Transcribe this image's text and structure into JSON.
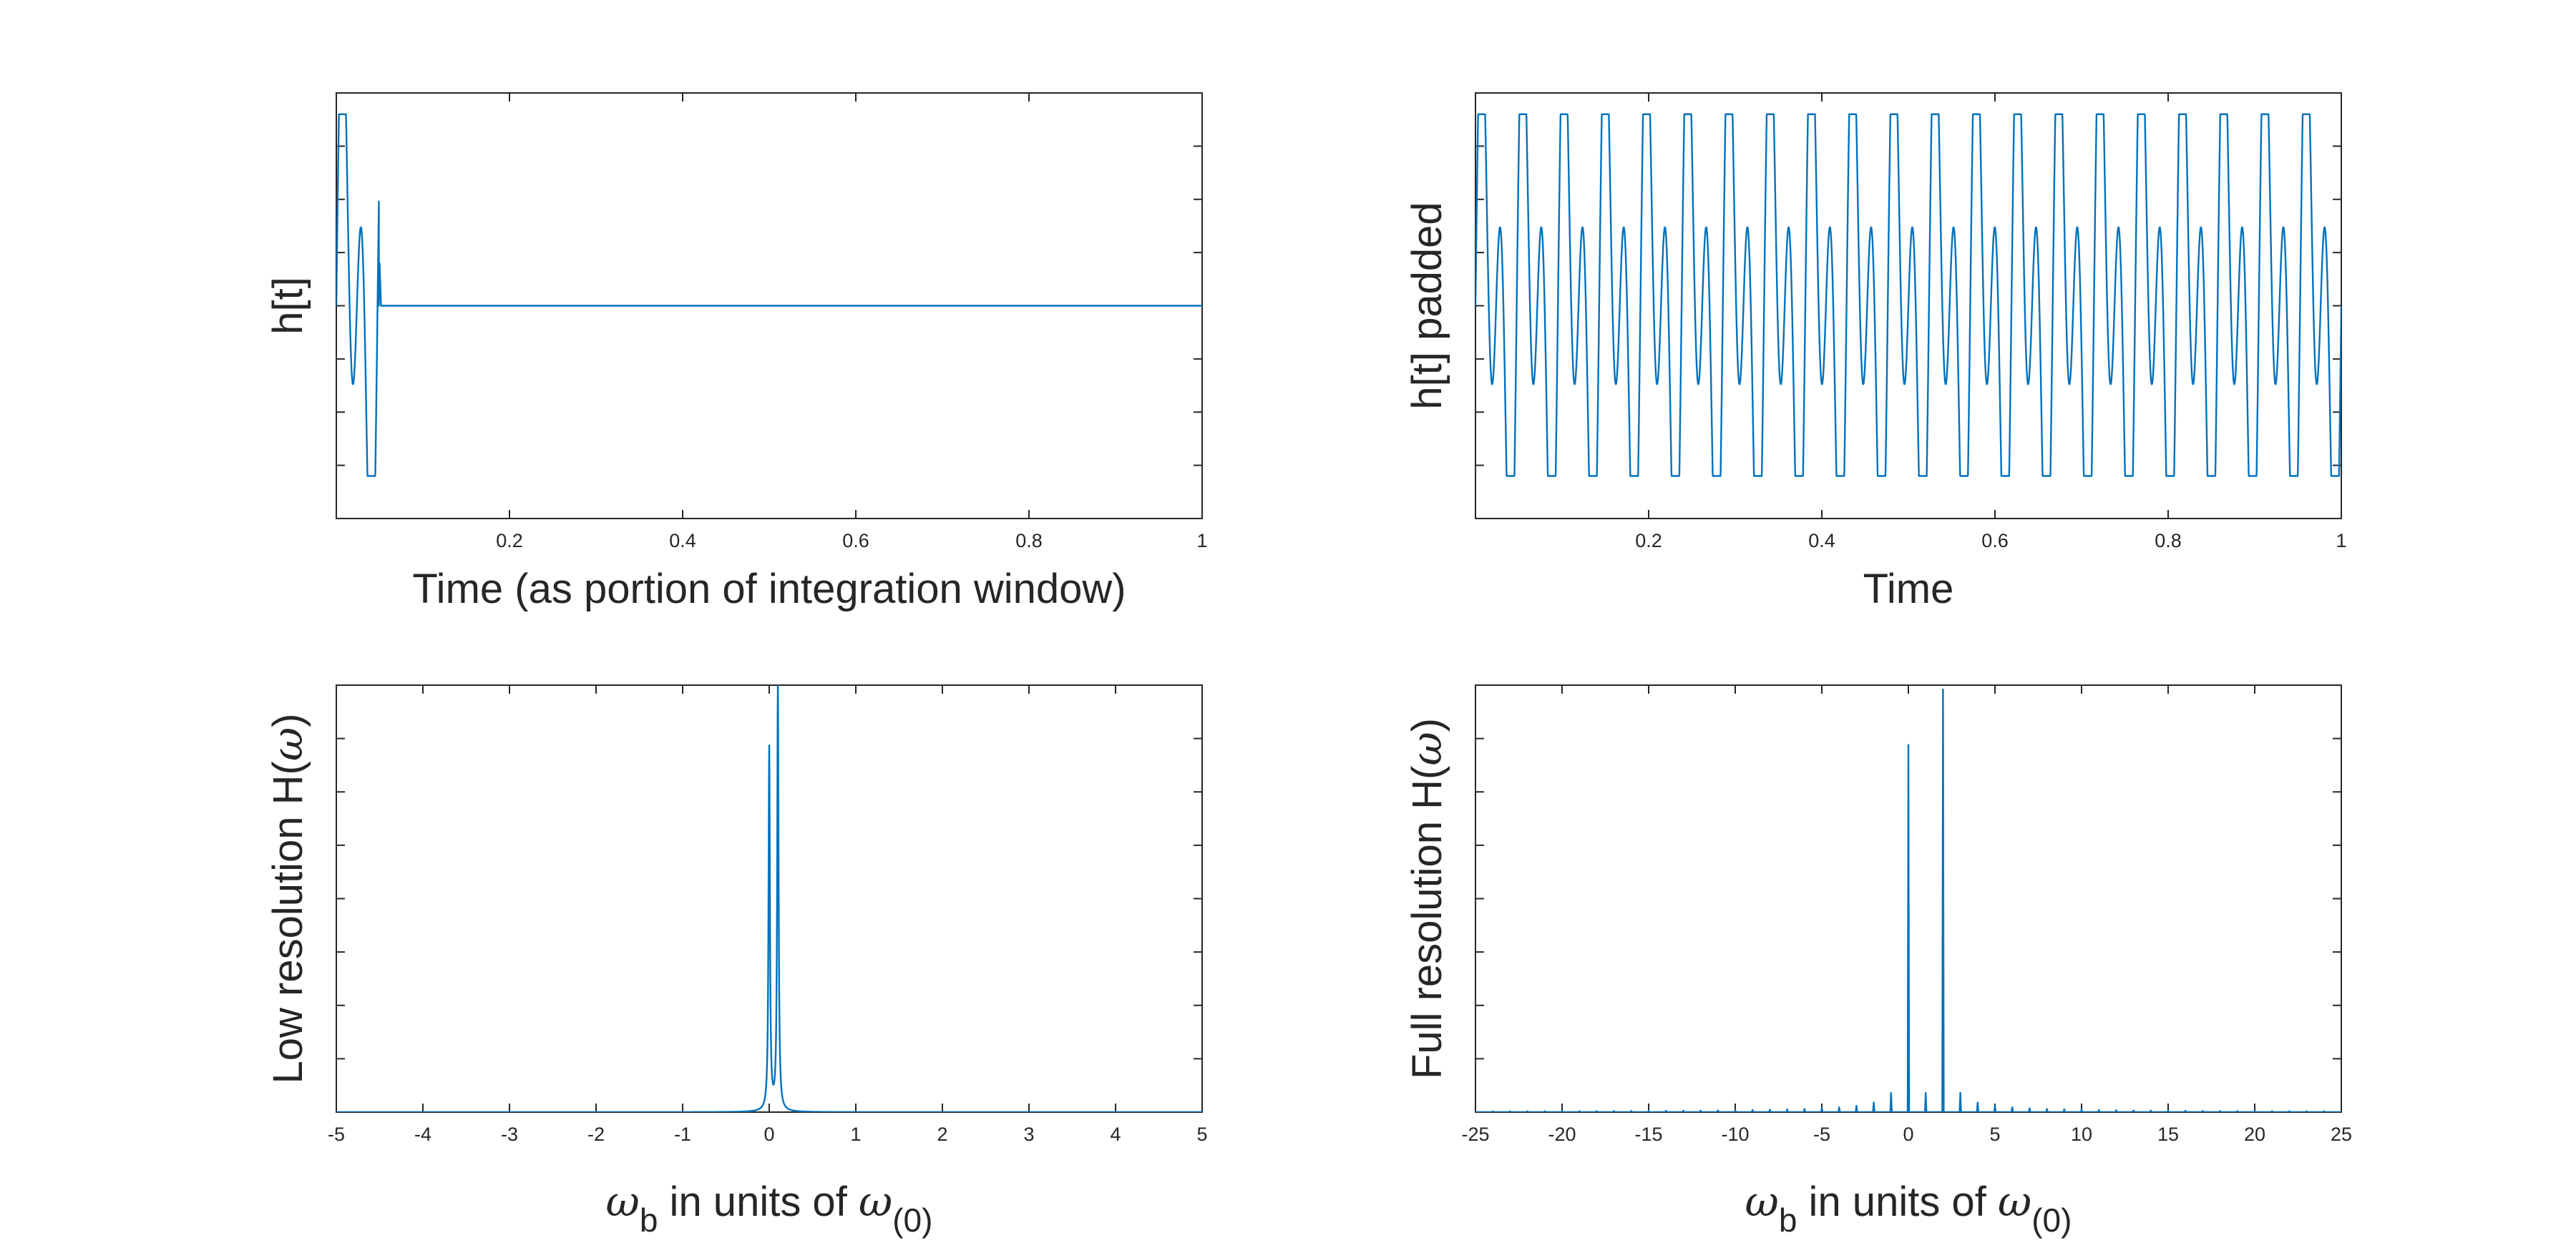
{
  "figure": {
    "background": "#ffffff",
    "axis_color": "#262626"
  },
  "chart_data": [
    {
      "id": "impulse",
      "type": "line",
      "xlabel": "Time (as portion of integration window)",
      "ylabel": "h[t]",
      "xlim": [
        0,
        1
      ],
      "ylim": [
        -4,
        4
      ],
      "xticks": [
        0.2,
        0.4,
        0.6,
        0.8,
        1
      ],
      "xtick_labels": [
        "0.2",
        "0.4",
        "0.6",
        "0.8",
        "1"
      ],
      "ytick_count": 7,
      "grid": false,
      "series": [
        {
          "color": "#0072BD",
          "description": "two-tone oscillation confined to t < 0.05, then zero",
          "components": [
            {
              "frequency_cycles_per_window": 21,
              "amplitude": 3.0
            },
            {
              "frequency_cycles_per_window": 42,
              "amplitude": 3.4
            }
          ],
          "active_until": 0.05,
          "values_after": 0
        }
      ]
    },
    {
      "id": "padded",
      "type": "line",
      "xlabel": "Time",
      "ylabel": "h[t] padded",
      "xlim": [
        0,
        1
      ],
      "ylim": [
        -4,
        4
      ],
      "xticks": [
        0.2,
        0.4,
        0.6,
        0.8,
        1
      ],
      "xtick_labels": [
        "0.2",
        "0.4",
        "0.6",
        "0.8",
        "1"
      ],
      "ytick_count": 7,
      "grid": false,
      "series": [
        {
          "color": "#0072BD",
          "description": "the same two-tone oscillation repeated over the full window",
          "components": [
            {
              "frequency_cycles_per_window": 21,
              "amplitude": 3.0
            },
            {
              "frequency_cycles_per_window": 42,
              "amplitude": 3.4
            }
          ]
        }
      ]
    },
    {
      "id": "low_res",
      "type": "line",
      "xlabel_parts": [
        "ω",
        "b",
        " in units of ",
        "ω",
        "(0)"
      ],
      "ylabel_parts": [
        "Low resolution H(",
        "ω",
        ")"
      ],
      "xlim": [
        -5,
        5
      ],
      "ylim": [
        0,
        1
      ],
      "xticks": [
        -5,
        -4,
        -3,
        -2,
        -1,
        0,
        1,
        2,
        3,
        4,
        5
      ],
      "xtick_labels": [
        "-5",
        "-4",
        "-3",
        "-2",
        "-1",
        "0",
        "1",
        "2",
        "3",
        "4",
        "5"
      ],
      "ytick_count": 7,
      "grid": false,
      "series": [
        {
          "color": "#0072BD",
          "peaks": [
            {
              "x": 0.0,
              "height": 0.85,
              "width": 0.06
            },
            {
              "x": 0.1,
              "height": 1.0,
              "width": 0.06
            }
          ]
        }
      ]
    },
    {
      "id": "full_res",
      "type": "line",
      "xlabel_parts": [
        "ω",
        "b",
        " in units of ",
        "ω",
        "(0)"
      ],
      "ylabel_parts": [
        "Full resolution H(",
        "ω",
        ")"
      ],
      "xlim": [
        -25,
        25
      ],
      "ylim": [
        0,
        1
      ],
      "xticks": [
        -25,
        -20,
        -15,
        -10,
        -5,
        0,
        5,
        10,
        15,
        20,
        25
      ],
      "xtick_labels": [
        "-25",
        "-20",
        "-15",
        "-10",
        "-5",
        "0",
        "5",
        "10",
        "15",
        "20",
        "25"
      ],
      "ytick_count": 7,
      "grid": false,
      "series": [
        {
          "color": "#0072BD",
          "main_lines": [
            {
              "x": 0,
              "height": 0.86
            },
            {
              "x": 2,
              "height": 0.99
            }
          ],
          "sidelobe_spacing": 1
        }
      ]
    }
  ]
}
